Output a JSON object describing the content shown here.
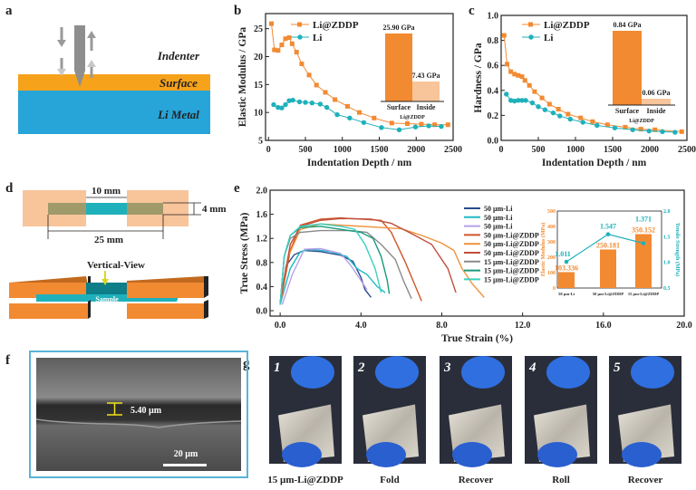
{
  "panel_labels": {
    "a": "a",
    "b": "b",
    "c": "c",
    "d": "d",
    "e": "e",
    "f": "f",
    "g": "g"
  },
  "colors": {
    "orange": "#f28a32",
    "light_orange": "#f8c49a",
    "teal": "#1fb1bb",
    "li_blue": "#27a4d8",
    "surface_orange": "#f7a21b",
    "frame_blue": "#5ab4d6"
  },
  "panel_a": {
    "indenter": "Indenter",
    "surface": "Surface",
    "li_metal": "Li Metal"
  },
  "panel_d": {
    "dim_10": "10 mm",
    "dim_25": "25 mm",
    "dim_4": "4 mm",
    "vertical_view": "Vertical-View",
    "sample": "Sample"
  },
  "panel_f": {
    "thickness": "5.40 µm",
    "scale_bar": "20 µm"
  },
  "panel_g": {
    "photos": [
      {
        "number": "1",
        "caption": "15 µm-Li@ZDDP"
      },
      {
        "number": "2",
        "caption": "Fold"
      },
      {
        "number": "3",
        "caption": "Recover"
      },
      {
        "number": "4",
        "caption": "Roll"
      },
      {
        "number": "5",
        "caption": "Recover"
      }
    ]
  },
  "chart_data": [
    {
      "id": "b",
      "type": "line",
      "xlabel": "Indentation Depth / nm",
      "ylabel": "Elastic Modulus / GPa",
      "xlim": [
        -40,
        2500
      ],
      "ylim": [
        5,
        27.7
      ],
      "x_ticks": [
        "0",
        "500",
        "1000",
        "1500",
        "2000",
        "2500"
      ],
      "y_ticks": [
        "5",
        "10",
        "15",
        "20",
        "25"
      ],
      "legend": "top-left",
      "series": [
        {
          "name": "Li@ZDDP",
          "color": "#f28a32",
          "marker": "square",
          "x": [
            40,
            80,
            130,
            180,
            230,
            280,
            320,
            380,
            450,
            550,
            650,
            770,
            900,
            1070,
            1230,
            1430,
            1670,
            1880,
            2070,
            2250,
            2430
          ],
          "y": [
            25.9,
            21.2,
            21.1,
            22.1,
            23.2,
            23.4,
            22.3,
            20.8,
            18.7,
            16.7,
            14.9,
            13.6,
            12.3,
            11.1,
            10.0,
            9.0,
            8.1,
            8.0,
            7.9,
            7.8,
            7.8
          ]
        },
        {
          "name": "Li",
          "color": "#1fb1bb",
          "marker": "circle",
          "x": [
            70,
            130,
            180,
            230,
            280,
            330,
            420,
            500,
            590,
            700,
            790,
            930,
            1100,
            1290,
            1530,
            1770,
            1990,
            2170,
            2340
          ],
          "y": [
            11.4,
            10.9,
            10.8,
            11.4,
            12.1,
            12.2,
            11.9,
            11.8,
            11.7,
            11.5,
            10.9,
            9.6,
            9.0,
            8.2,
            7.3,
            6.9,
            7.4,
            7.6,
            7.5
          ]
        }
      ],
      "inset": {
        "type": "bar",
        "group_label": "Li@ZDDP",
        "categories": [
          "Surface",
          "Inside"
        ],
        "values": [
          25.9,
          7.43
        ],
        "value_labels": [
          "25.90 GPa",
          "7.43 GPa"
        ],
        "colors": [
          "#f28a32",
          "#f8c49a"
        ]
      }
    },
    {
      "id": "c",
      "type": "line",
      "xlabel": "Indentation Depth / nm",
      "ylabel": "Hardness / GPa",
      "xlim": [
        0,
        2500
      ],
      "ylim": [
        0,
        1.0
      ],
      "x_ticks": [
        "0",
        "500",
        "1000",
        "1500",
        "2000",
        "2500"
      ],
      "y_ticks": [
        "0.0",
        "0.2",
        "0.4",
        "0.6",
        "0.8",
        "1.0"
      ],
      "legend": "top-left",
      "series": [
        {
          "name": "Li@ZDDP",
          "color": "#f28a32",
          "marker": "square",
          "x": [
            40,
            80,
            130,
            180,
            230,
            280,
            320,
            380,
            450,
            550,
            650,
            770,
            900,
            1070,
            1230,
            1430,
            1670,
            1880,
            2070,
            2430
          ],
          "y": [
            0.84,
            0.61,
            0.55,
            0.53,
            0.52,
            0.51,
            0.48,
            0.44,
            0.39,
            0.34,
            0.29,
            0.25,
            0.21,
            0.18,
            0.15,
            0.125,
            0.105,
            0.09,
            0.085,
            0.07
          ]
        },
        {
          "name": "Li",
          "color": "#1fb1bb",
          "marker": "circle",
          "x": [
            70,
            130,
            180,
            230,
            280,
            330,
            420,
            500,
            590,
            700,
            790,
            930,
            1100,
            1290,
            1530,
            1770,
            1990,
            2170,
            2340
          ],
          "y": [
            0.37,
            0.32,
            0.315,
            0.32,
            0.32,
            0.32,
            0.3,
            0.27,
            0.245,
            0.22,
            0.195,
            0.17,
            0.145,
            0.12,
            0.1,
            0.085,
            0.075,
            0.07,
            0.065
          ]
        }
      ],
      "inset": {
        "type": "bar",
        "group_label": "Li@ZDDP",
        "categories": [
          "Surface",
          "Inside"
        ],
        "values": [
          0.84,
          0.06
        ],
        "value_labels": [
          "0.84 GPa",
          "0.06 GPa"
        ],
        "colors": [
          "#f28a32",
          "#f8c49a"
        ]
      }
    },
    {
      "id": "e",
      "type": "line",
      "xlabel": "True Strain (%)",
      "ylabel": "True Stress (MPa)",
      "xlim": [
        -0.5,
        20
      ],
      "ylim": [
        -0.09,
        2.0
      ],
      "x_ticks": [
        "0.0",
        "4.0",
        "8.0",
        "12.0",
        "16.0",
        "20.0"
      ],
      "y_ticks": [
        "0.0",
        "0.4",
        "0.8",
        "1.2",
        "1.6",
        "2.0"
      ],
      "legend": "top-right",
      "series": [
        {
          "name": "50 µm-Li",
          "color": "#2b4c8c",
          "points": [
            [
              0,
              0.1
            ],
            [
              0.3,
              0.75
            ],
            [
              0.7,
              0.93
            ],
            [
              1.2,
              1.0
            ],
            [
              2,
              0.98
            ],
            [
              3,
              0.92
            ],
            [
              3.6,
              0.82
            ],
            [
              4,
              0.55
            ],
            [
              4.2,
              0.35
            ],
            [
              4.5,
              0.22
            ]
          ]
        },
        {
          "name": "50 µm-Li",
          "color": "#1fb8c4",
          "points": [
            [
              0,
              0.1
            ],
            [
              0.5,
              0.7
            ],
            [
              1,
              0.98
            ],
            [
              1.5,
              1.02
            ],
            [
              2.5,
              0.98
            ],
            [
              3.3,
              0.9
            ],
            [
              3.8,
              0.7
            ],
            [
              4.3,
              0.6
            ],
            [
              4.8,
              0.4
            ],
            [
              5.2,
              0.3
            ]
          ]
        },
        {
          "name": "50 µm-Li",
          "color": "#b9a0e8",
          "points": [
            [
              0.1,
              0.1
            ],
            [
              0.6,
              0.6
            ],
            [
              1.2,
              1.02
            ],
            [
              2,
              1.03
            ],
            [
              3,
              0.95
            ],
            [
              3.5,
              0.75
            ],
            [
              4,
              0.5
            ],
            [
              4.3,
              0.35
            ]
          ]
        },
        {
          "name": "50 µm-Li@ZDDP",
          "color": "#d0562a",
          "points": [
            [
              0,
              0.1
            ],
            [
              0.5,
              1.0
            ],
            [
              1,
              1.42
            ],
            [
              2,
              1.52
            ],
            [
              3,
              1.54
            ],
            [
              4,
              1.52
            ],
            [
              5,
              1.5
            ],
            [
              5.5,
              1.3
            ],
            [
              6.2,
              0.8
            ],
            [
              6.7,
              0.4
            ],
            [
              7,
              0.16
            ]
          ]
        },
        {
          "name": "50 µm-Li@ZDDP",
          "color": "#f0923a",
          "points": [
            [
              0,
              0.1
            ],
            [
              0.4,
              0.9
            ],
            [
              1,
              1.35
            ],
            [
              2,
              1.44
            ],
            [
              3.5,
              1.41
            ],
            [
              5,
              1.38
            ],
            [
              6,
              1.36
            ],
            [
              7,
              1.25
            ],
            [
              8,
              1.12
            ],
            [
              8.6,
              1.0
            ],
            [
              9,
              0.7
            ],
            [
              9.5,
              0.45
            ],
            [
              10.1,
              0.22
            ]
          ]
        },
        {
          "name": "50 µm-Li@ZDDP",
          "color": "#c0503a",
          "points": [
            [
              0,
              0.15
            ],
            [
              0.5,
              1.1
            ],
            [
              1,
              1.4
            ],
            [
              2,
              1.5
            ],
            [
              3,
              1.53
            ],
            [
              4.5,
              1.52
            ],
            [
              5.5,
              1.45
            ],
            [
              6.5,
              1.28
            ],
            [
              7.5,
              1.1
            ],
            [
              8.3,
              0.7
            ],
            [
              8.7,
              0.3
            ]
          ]
        },
        {
          "name": "15 µm-Li@ZDDP",
          "color": "#8a8a8a",
          "points": [
            [
              0,
              0.1
            ],
            [
              0.2,
              0.9
            ],
            [
              0.5,
              1.2
            ],
            [
              1,
              1.3
            ],
            [
              2,
              1.33
            ],
            [
              3.5,
              1.33
            ],
            [
              4.3,
              1.3
            ],
            [
              5,
              1.1
            ],
            [
              5.7,
              0.85
            ],
            [
              6.1,
              0.5
            ],
            [
              6.5,
              0.2
            ]
          ]
        },
        {
          "name": "15 µm-Li@ZDDP",
          "color": "#1a9a7a",
          "points": [
            [
              0,
              0.1
            ],
            [
              0.2,
              0.9
            ],
            [
              0.5,
              1.25
            ],
            [
              1,
              1.38
            ],
            [
              2,
              1.4
            ],
            [
              3,
              1.35
            ],
            [
              4,
              1.3
            ],
            [
              4.6,
              1.2
            ],
            [
              5,
              0.9
            ],
            [
              5.3,
              0.5
            ],
            [
              5.4,
              0.28
            ]
          ]
        },
        {
          "name": "15 µm-Li@ZDDP",
          "color": "#3cd0c0",
          "points": [
            [
              0,
              0.1
            ],
            [
              0.2,
              0.9
            ],
            [
              0.5,
              1.25
            ],
            [
              1,
              1.4
            ],
            [
              2,
              1.44
            ],
            [
              3,
              1.4
            ],
            [
              3.7,
              1.35
            ],
            [
              4.2,
              1.1
            ],
            [
              4.7,
              0.7
            ],
            [
              5,
              0.3
            ]
          ]
        }
      ]
    },
    {
      "id": "e-inset",
      "type": "bar+line",
      "categories": [
        "50 µm-Li",
        "50 µm-Li@ZDDP",
        "15 µm-Li@ZDDP"
      ],
      "bar": {
        "ylabel": "Elastic Modulus (MPa)",
        "ylim": [
          0,
          500
        ],
        "y_ticks": [
          "0",
          "100",
          "200",
          "300",
          "400",
          "500"
        ],
        "values": [
          103.336,
          250.181,
          350.152
        ],
        "value_labels": [
          "103.336",
          "250.181",
          "350.152"
        ],
        "color": "#f28a32"
      },
      "line": {
        "ylabel": "Tensile Strength (MPa)",
        "ylim": [
          0.5,
          2.0
        ],
        "y_ticks": [
          "0.5",
          "1.0",
          "1.5",
          "2.0"
        ],
        "values": [
          1.011,
          1.547,
          1.371
        ],
        "value_labels": [
          "1.011",
          "1.547",
          "1.371"
        ],
        "color": "#1fb1bb"
      }
    }
  ]
}
